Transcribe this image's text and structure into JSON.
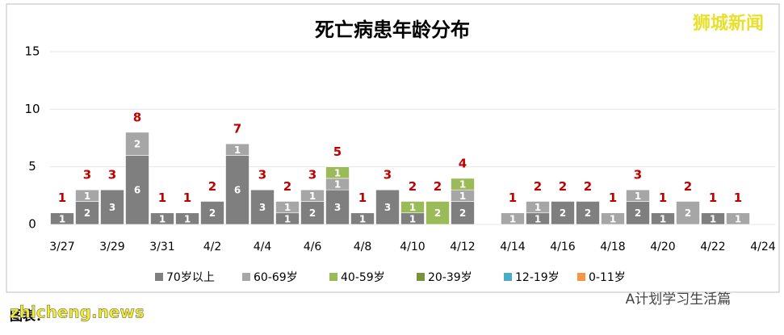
{
  "chart_data": {
    "type": "stacked-bar",
    "title": "死亡病患年龄分布",
    "categories": [
      "3/27",
      null,
      "3/29",
      null,
      "3/31",
      null,
      "4/2",
      null,
      "4/4",
      null,
      "4/6",
      null,
      "4/8",
      null,
      "4/10",
      null,
      "4/12",
      null,
      "4/14",
      null,
      "4/16",
      null,
      "4/18",
      null,
      "4/20",
      null,
      "4/22",
      null,
      "4/24"
    ],
    "series": [
      {
        "name": "70岁以上",
        "color": "#7f7f7f",
        "values": [
          1,
          2,
          3,
          6,
          1,
          1,
          2,
          6,
          3,
          1,
          2,
          3,
          1,
          3,
          1,
          0,
          2,
          0,
          0,
          1,
          2,
          2,
          0,
          2,
          1,
          0,
          1,
          0,
          0
        ]
      },
      {
        "name": "60-69岁",
        "color": "#a6a6a6",
        "values": [
          0,
          1,
          0,
          2,
          0,
          0,
          0,
          1,
          0,
          1,
          1,
          1,
          0,
          0,
          0,
          0,
          1,
          0,
          1,
          1,
          0,
          0,
          1,
          1,
          0,
          2,
          0,
          1,
          0
        ]
      },
      {
        "name": "40-59岁",
        "color": "#9bbb59",
        "values": [
          0,
          0,
          0,
          0,
          0,
          0,
          0,
          0,
          0,
          0,
          0,
          1,
          0,
          0,
          1,
          2,
          1,
          0,
          0,
          0,
          0,
          0,
          0,
          0,
          0,
          0,
          0,
          0,
          0
        ]
      },
      {
        "name": "20-39岁",
        "color": "#77933c",
        "values": [
          0,
          0,
          0,
          0,
          0,
          0,
          0,
          0,
          0,
          0,
          0,
          0,
          0,
          0,
          0,
          0,
          0,
          0,
          0,
          0,
          0,
          0,
          0,
          0,
          0,
          0,
          0,
          0,
          0
        ]
      },
      {
        "name": "12-19岁",
        "color": "#4bacc6",
        "values": [
          0,
          0,
          0,
          0,
          0,
          0,
          0,
          0,
          0,
          0,
          0,
          0,
          0,
          0,
          0,
          0,
          0,
          0,
          0,
          0,
          0,
          0,
          0,
          0,
          0,
          0,
          0,
          0,
          0
        ]
      },
      {
        "name": "0-11岁",
        "color": "#f79646",
        "values": [
          0,
          0,
          0,
          0,
          0,
          0,
          0,
          0,
          0,
          0,
          0,
          0,
          0,
          0,
          0,
          0,
          0,
          0,
          0,
          0,
          0,
          0,
          0,
          0,
          0,
          0,
          0,
          0,
          0
        ]
      }
    ],
    "totals": [
      1,
      3,
      3,
      8,
      1,
      1,
      2,
      7,
      3,
      2,
      3,
      5,
      1,
      3,
      2,
      2,
      4,
      null,
      1,
      2,
      2,
      2,
      1,
      3,
      1,
      2,
      1,
      1,
      null
    ],
    "ylim": [
      0,
      15
    ],
    "yticks": [
      0,
      5,
      10,
      15
    ],
    "grid": true,
    "legend": "bottom"
  },
  "watermark": "狮城新闻",
  "credit": "图表：",
  "site": "zhicheng.news",
  "account": "A计划学习生活篇"
}
